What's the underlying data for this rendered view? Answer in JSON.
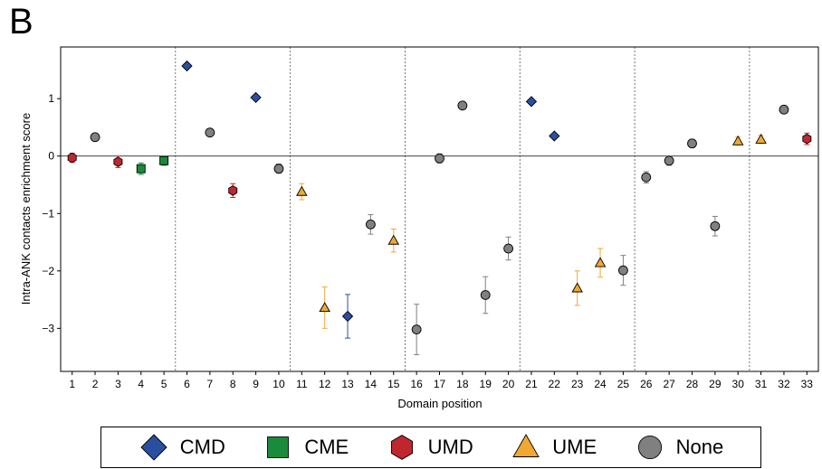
{
  "panel_label": "B",
  "chart_data": {
    "type": "scatter",
    "title": "",
    "xlabel": "Domain position",
    "ylabel": "Intra-ANK contacts enrichment score",
    "xlim": [
      0.5,
      33.5
    ],
    "ylim": [
      -3.75,
      1.9
    ],
    "x_ticks": [
      1,
      2,
      3,
      4,
      5,
      6,
      7,
      8,
      9,
      10,
      11,
      12,
      13,
      14,
      15,
      16,
      17,
      18,
      19,
      20,
      21,
      22,
      23,
      24,
      25,
      26,
      27,
      28,
      29,
      30,
      31,
      32,
      33
    ],
    "y_ticks": [
      1,
      0,
      -1,
      -2,
      -3
    ],
    "y_tick_labels": [
      "1",
      "0",
      "−1",
      "−2",
      "−3"
    ],
    "zero_line": 0,
    "separators": [
      5.5,
      10.5,
      15.5,
      20.5,
      25.5,
      30.5
    ],
    "grid": false,
    "legend_position": "bottom",
    "series": [
      {
        "name": "CMD",
        "marker": "diamond",
        "color": "#2b4fa0",
        "points": [
          {
            "x": 6,
            "y": 1.57,
            "err": 0.03
          },
          {
            "x": 9,
            "y": 1.02,
            "err": 0.03
          },
          {
            "x": 13,
            "y": -2.79,
            "err": 0.38
          },
          {
            "x": 21,
            "y": 0.95,
            "err": 0.03
          },
          {
            "x": 22,
            "y": 0.35,
            "err": 0.03
          }
        ]
      },
      {
        "name": "CME",
        "marker": "square",
        "color": "#1b8a3a",
        "points": [
          {
            "x": 4,
            "y": -0.22,
            "err": 0.1
          },
          {
            "x": 5,
            "y": -0.08,
            "err": 0.08
          }
        ]
      },
      {
        "name": "UMD",
        "marker": "hexagon",
        "color": "#c0262d",
        "points": [
          {
            "x": 1,
            "y": -0.03,
            "err": 0.08
          },
          {
            "x": 3,
            "y": -0.1,
            "err": 0.1
          },
          {
            "x": 8,
            "y": -0.6,
            "err": 0.12
          },
          {
            "x": 33,
            "y": 0.3,
            "err": 0.1
          }
        ]
      },
      {
        "name": "UME",
        "marker": "triangle",
        "color": "#f0a830",
        "points": [
          {
            "x": 11,
            "y": -0.62,
            "err": 0.14
          },
          {
            "x": 12,
            "y": -2.64,
            "err": 0.36
          },
          {
            "x": 15,
            "y": -1.47,
            "err": 0.2
          },
          {
            "x": 23,
            "y": -2.3,
            "err": 0.3
          },
          {
            "x": 24,
            "y": -1.86,
            "err": 0.25
          },
          {
            "x": 30,
            "y": 0.26,
            "err": 0.07
          },
          {
            "x": 31,
            "y": 0.29,
            "err": 0.07
          }
        ]
      },
      {
        "name": "None",
        "marker": "circle",
        "color": "#808080",
        "points": [
          {
            "x": 2,
            "y": 0.33,
            "err": 0.05
          },
          {
            "x": 7,
            "y": 0.41,
            "err": 0.06
          },
          {
            "x": 10,
            "y": -0.22,
            "err": 0.08
          },
          {
            "x": 14,
            "y": -1.19,
            "err": 0.17
          },
          {
            "x": 16,
            "y": -3.02,
            "err": 0.44
          },
          {
            "x": 17,
            "y": -0.04,
            "err": 0.08
          },
          {
            "x": 18,
            "y": 0.88,
            "err": 0.04
          },
          {
            "x": 19,
            "y": -2.42,
            "err": 0.32
          },
          {
            "x": 20,
            "y": -1.61,
            "err": 0.2
          },
          {
            "x": 25,
            "y": -1.99,
            "err": 0.26
          },
          {
            "x": 26,
            "y": -0.37,
            "err": 0.1
          },
          {
            "x": 27,
            "y": -0.08,
            "err": 0.08
          },
          {
            "x": 28,
            "y": 0.22,
            "err": 0.07
          },
          {
            "x": 29,
            "y": -1.22,
            "err": 0.17
          },
          {
            "x": 32,
            "y": 0.81,
            "err": 0.05
          }
        ]
      }
    ]
  }
}
